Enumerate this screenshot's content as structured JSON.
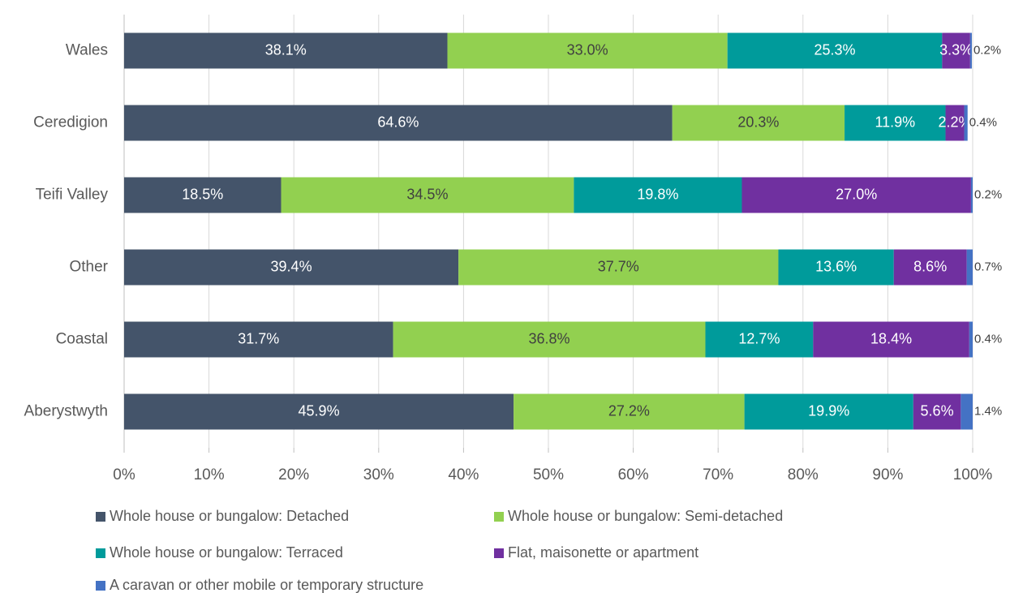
{
  "chart_data": {
    "type": "stacked_bar_horizontal",
    "categories": [
      "Wales",
      "Ceredigion",
      "Teifi Valley",
      "Other",
      "Coastal",
      "Aberystwyth"
    ],
    "series": [
      {
        "name": "Whole house or bungalow: Detached",
        "color": "#44546a",
        "values": [
          38.1,
          64.6,
          18.5,
          39.4,
          31.7,
          45.9
        ],
        "value_labels": [
          "38.1%",
          "64.6%",
          "18.5%",
          "39.4%",
          "31.7%",
          "45.9%"
        ]
      },
      {
        "name": "Whole house or bungalow: Semi-detached",
        "color": "#92d050",
        "values": [
          33.0,
          20.3,
          34.5,
          37.7,
          36.8,
          27.2
        ],
        "value_labels": [
          "33.0%",
          "20.3%",
          "34.5%",
          "37.7%",
          "36.8%",
          "27.2%"
        ]
      },
      {
        "name": "Whole house or bungalow: Terraced",
        "color": "#009b9b",
        "values": [
          25.3,
          11.9,
          19.8,
          13.6,
          12.7,
          19.9
        ],
        "value_labels": [
          "25.3%",
          "11.9%",
          "19.8%",
          "13.6%",
          "12.7%",
          "19.9%"
        ]
      },
      {
        "name": "Flat, maisonette or apartment",
        "color": "#7030a0",
        "values": [
          3.3,
          2.2,
          27.0,
          8.6,
          18.4,
          5.6
        ],
        "value_labels": [
          "3.3%",
          "2.2%",
          "27.0%",
          "8.6%",
          "18.4%",
          "5.6%"
        ]
      },
      {
        "name": "A caravan or other mobile or temporary structure",
        "color": "#4472c4",
        "values": [
          0.2,
          0.4,
          0.2,
          0.7,
          0.4,
          1.4
        ],
        "value_labels": [
          "0.2%",
          "0.4%",
          "0.2%",
          "0.7%",
          "0.4%",
          "1.4%"
        ]
      }
    ],
    "xlim": [
      0,
      100
    ],
    "xticks": [
      {
        "value": 0,
        "label": "0%"
      },
      {
        "value": 10,
        "label": "10%"
      },
      {
        "value": 20,
        "label": "20%"
      },
      {
        "value": 30,
        "label": "30%"
      },
      {
        "value": 40,
        "label": "40%"
      },
      {
        "value": 50,
        "label": "50%"
      },
      {
        "value": 60,
        "label": "60%"
      },
      {
        "value": 70,
        "label": "70%"
      },
      {
        "value": 80,
        "label": "80%"
      },
      {
        "value": 90,
        "label": "90%"
      },
      {
        "value": 100,
        "label": "100%"
      }
    ],
    "grid": true,
    "legend_position": "bottom"
  }
}
